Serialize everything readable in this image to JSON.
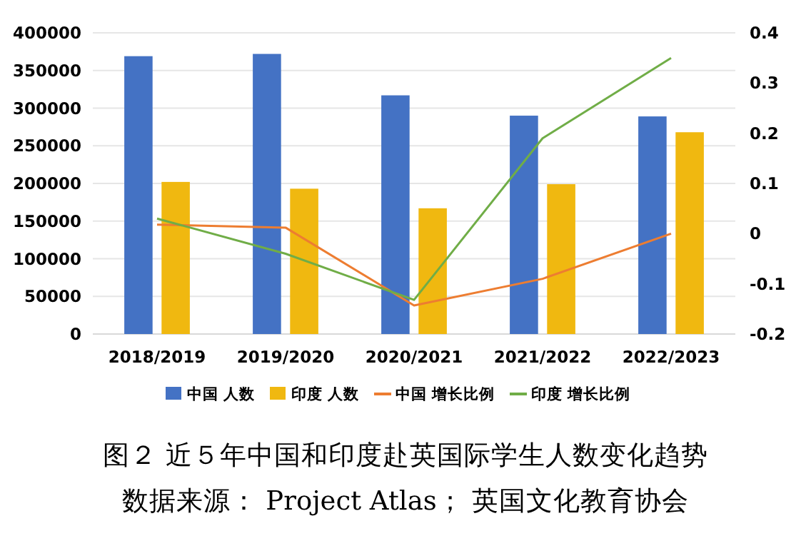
{
  "chart_data": {
    "type": "bar",
    "categories": [
      "2018/2019",
      "2019/2020",
      "2020/2021",
      "2021/2022",
      "2022/2023"
    ],
    "series": [
      {
        "name": "中国 人数",
        "color": "#4472c4",
        "values": [
          369000,
          372000,
          317000,
          290000,
          289000
        ]
      },
      {
        "name": "印度 人数",
        "color": "#f0b810",
        "values": [
          202000,
          193000,
          167000,
          199000,
          268000
        ]
      },
      {
        "name": "中国 增长比例",
        "type": "line",
        "axis": "y2",
        "color": "#ed7d31",
        "values": [
          0.018,
          0.012,
          -0.143,
          -0.09,
          0
        ]
      },
      {
        "name": "印度 增长比例",
        "type": "line",
        "axis": "y2",
        "color": "#70ad47",
        "values": [
          0.03,
          -0.04,
          -0.132,
          0.19,
          0.35
        ]
      }
    ],
    "ylim": [
      0,
      400000
    ],
    "yticks": [
      0,
      50000,
      100000,
      150000,
      200000,
      250000,
      300000,
      350000,
      400000
    ],
    "y2lim": [
      -0.2,
      0.4
    ],
    "y2ticks": [
      -0.2,
      -0.1,
      0,
      0.1,
      0.2,
      0.3,
      0.4
    ],
    "grid": "y",
    "legend": "bottom",
    "marker": "none",
    "line_style": "solid",
    "annotations": [
      "图２ 近５年中国和印度赴英国际学生人数变化趋势",
      "数据来源： Project Atlas； 英国文化教育协会"
    ]
  }
}
